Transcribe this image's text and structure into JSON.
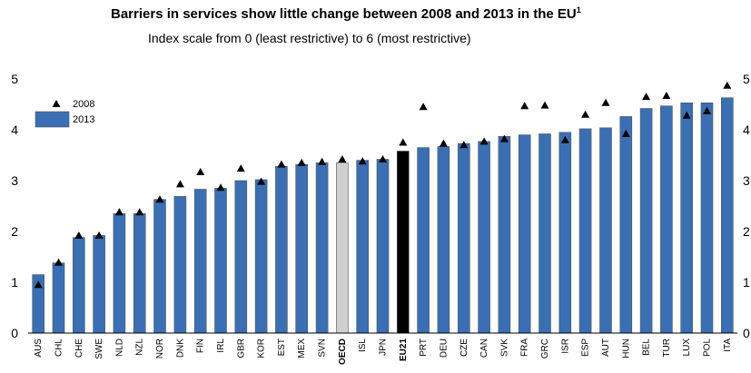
{
  "chart_data": {
    "type": "bar",
    "title": "Barriers in services show little change between 2008 and 2013 in the EU",
    "title_superscript": "1",
    "subtitle": "Index scale from 0 (least restrictive) to 6 (most restrictive)",
    "xlabel": "",
    "ylabel": "",
    "ylim": [
      0,
      5
    ],
    "yticks": [
      "0",
      "1",
      "2",
      "3",
      "4",
      "5"
    ],
    "right_axis_ticks": [
      "0",
      "1",
      "2",
      "3",
      "4",
      "5"
    ],
    "grid": false,
    "legend_position": "top-left",
    "categories": [
      "AUS",
      "CHL",
      "CHE",
      "SWE",
      "NLD",
      "NZL",
      "NOR",
      "DNK",
      "FIN",
      "IRL",
      "GBR",
      "KOR",
      "EST",
      "MEX",
      "SVN",
      "OECD",
      "ISL",
      "JPN",
      "EU21",
      "PRT",
      "DEU",
      "CZE",
      "CAN",
      "SVK",
      "FRA",
      "GRC",
      "ISR",
      "ESP",
      "AUT",
      "HUN",
      "BEL",
      "TUR",
      "LUX",
      "POL",
      "ITA"
    ],
    "highlight": {
      "OECD": "#cfcfcf",
      "EU21": "#000000"
    },
    "bold_categories": [
      "OECD",
      "EU21"
    ],
    "series": [
      {
        "name": "2013",
        "type": "bar",
        "color": "#3b6fb4",
        "values": [
          1.15,
          1.38,
          1.88,
          1.92,
          2.35,
          2.35,
          2.63,
          2.69,
          2.83,
          2.85,
          3.0,
          3.02,
          3.28,
          3.32,
          3.35,
          3.35,
          3.4,
          3.42,
          3.58,
          3.65,
          3.67,
          3.73,
          3.77,
          3.87,
          3.9,
          3.92,
          3.95,
          4.02,
          4.04,
          4.26,
          4.42,
          4.47,
          4.53,
          4.53,
          4.63
        ]
      },
      {
        "name": "2008",
        "type": "marker",
        "marker": "triangle",
        "color": "#000000",
        "values": [
          0.95,
          1.39,
          1.92,
          1.92,
          2.38,
          2.38,
          2.63,
          2.93,
          3.17,
          2.86,
          3.24,
          2.98,
          3.32,
          3.35,
          3.37,
          3.42,
          3.38,
          3.42,
          3.75,
          4.45,
          3.73,
          3.7,
          3.77,
          3.82,
          4.47,
          4.48,
          3.8,
          4.3,
          4.53,
          3.92,
          4.65,
          4.67,
          4.28,
          4.37,
          4.87
        ]
      }
    ]
  }
}
